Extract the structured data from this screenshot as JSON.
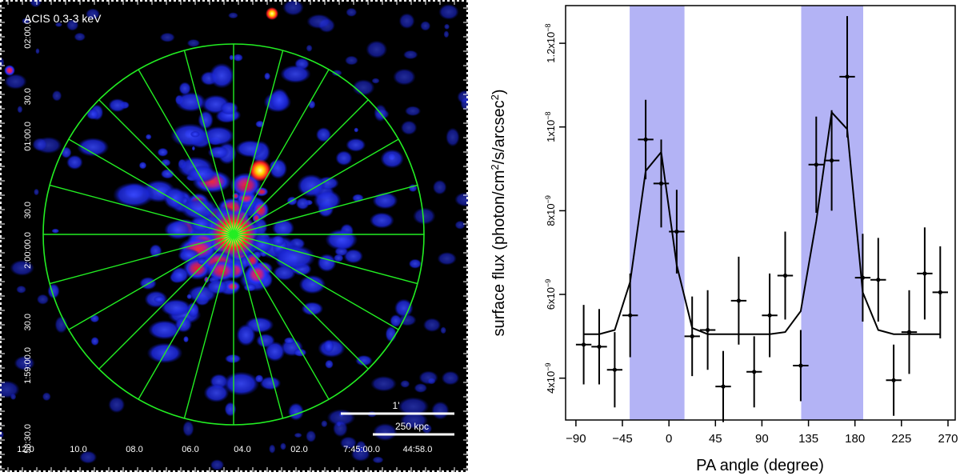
{
  "image_panel": {
    "label": "ACIS 0.3-3 keV",
    "scalebar_upper": "1'",
    "scalebar_lower": "250 kpc",
    "dec_ticks": [
      "02:00.0",
      "30.0",
      "01:00.0",
      "30.0",
      "2:00:00.0",
      "30.0",
      "1:59:00.0",
      "58:30.0"
    ],
    "ra_ticks": [
      "12.0",
      "10.0",
      "08.0",
      "06.0",
      "04.0",
      "02.0",
      "7:45:00.0",
      "44:58.0"
    ],
    "sector_count": 24,
    "colors": {
      "background": "#000000",
      "grid": "#22ee22",
      "frame_tick": "#ffffff",
      "emission_low": "#1a2dff",
      "emission_high": "#ff2020",
      "peak": "#ffff40"
    }
  },
  "chart_data": {
    "type": "line",
    "xlabel": "PA angle (degree)",
    "ylabel": "surface flux (photon/cm²/s/arcsec²)",
    "ylabel_parts": {
      "a": "surface flux (photon/cm",
      "b": "2",
      "c": "/s/arcsec",
      "d": "2",
      "e": ")"
    },
    "xlim": [
      -100,
      277
    ],
    "ylim": [
      3e-09,
      1.29e-08
    ],
    "x_ticks": [
      -90,
      -45,
      0,
      45,
      90,
      135,
      180,
      225,
      270
    ],
    "x_tick_labels": [
      "−90",
      "−45",
      "0",
      "45",
      "90",
      "135",
      "180",
      "225",
      "270"
    ],
    "y_ticks": [
      4e-09,
      6e-09,
      8e-09,
      1e-08,
      1.2e-08
    ],
    "y_tick_labels": [
      {
        "mant": "4x10",
        "exp": "−9"
      },
      {
        "mant": "6x10",
        "exp": "−9"
      },
      {
        "mant": "8x10",
        "exp": "−9"
      },
      {
        "mant": "1x10",
        "exp": "−8"
      },
      {
        "mant": "1.2x10",
        "exp": "−8"
      }
    ],
    "shaded_bands": [
      [
        -38,
        15
      ],
      [
        128,
        188
      ]
    ],
    "band_color": "#b3b3f5",
    "points": {
      "x": [
        -82.5,
        -67.5,
        -52.5,
        -37.5,
        -22.5,
        -7.5,
        7.5,
        22.5,
        37.5,
        52.5,
        67.5,
        82.5,
        97.5,
        112.5,
        127.5,
        142.5,
        157.5,
        172.5,
        187.5,
        202.5,
        217.5,
        232.5,
        247.5,
        262.5
      ],
      "y": [
        4.8e-09,
        4.75e-09,
        4.2e-09,
        5.5e-09,
        9.7e-09,
        8.65e-09,
        7.5e-09,
        5e-09,
        5.15e-09,
        3.8e-09,
        5.85e-09,
        4.15e-09,
        5.5e-09,
        6.45e-09,
        4.3e-09,
        9.1e-09,
        9.2e-09,
        1.12e-08,
        6.4e-09,
        6.35e-09,
        3.95e-09,
        5.1e-09,
        6.5e-09,
        6.05e-09
      ],
      "err": [
        9.5e-10,
        9e-10,
        9e-10,
        1e-09,
        9.5e-10,
        1.05e-09,
        1e-09,
        9.5e-10,
        9.5e-10,
        8.5e-10,
        1.05e-09,
        8.5e-10,
        1e-09,
        1.05e-09,
        8.5e-10,
        1.15e-09,
        1.2e-09,
        1.45e-09,
        1.05e-09,
        1e-09,
        8.5e-10,
        1e-09,
        1.1e-09,
        1.1e-09
      ]
    },
    "model": {
      "x": [
        -82.5,
        -67.5,
        -52.5,
        -37.5,
        -22.5,
        -7.5,
        7.5,
        22.5,
        37.5,
        52.5,
        67.5,
        82.5,
        97.5,
        112.5,
        127.5,
        142.5,
        157.5,
        172.5,
        187.5,
        202.5,
        217.5,
        232.5,
        247.5,
        262.5
      ],
      "y": [
        5.05e-09,
        5.05e-09,
        5.15e-09,
        6.3e-09,
        8.95e-09,
        9.4e-09,
        6.7e-09,
        5.2e-09,
        5.05e-09,
        5.05e-09,
        5.05e-09,
        5.05e-09,
        5.05e-09,
        5.1e-09,
        5.6e-09,
        7.75e-09,
        1.035e-08,
        9.95e-09,
        6.05e-09,
        5.15e-09,
        5.05e-09,
        5.05e-09,
        5.05e-09,
        5.05e-09
      ]
    }
  }
}
